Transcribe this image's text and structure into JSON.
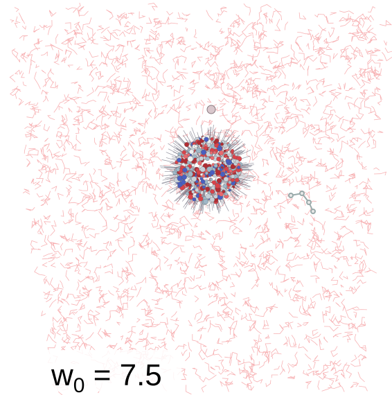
{
  "label": {
    "symbol": "w",
    "subscript": "0",
    "rest": " = 7.5"
  }
}
